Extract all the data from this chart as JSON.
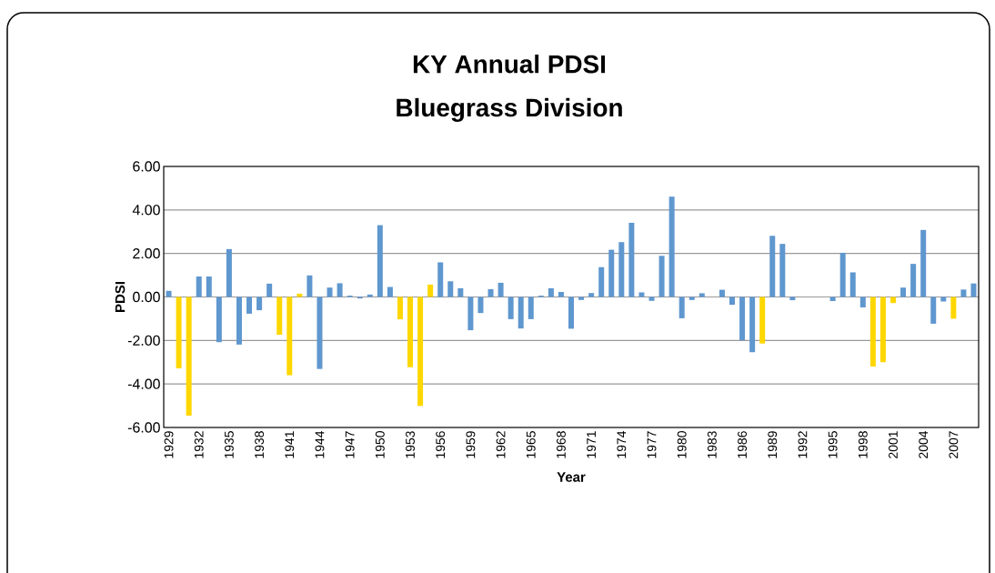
{
  "chart_data": {
    "type": "bar",
    "title": "KY Annual PDSI\nBluegrass Division",
    "xlabel": "Year",
    "ylabel": "PDSI",
    "categories": [
      "1929",
      null,
      null,
      "1932",
      null,
      null,
      "1935",
      null,
      null,
      "1938",
      null,
      null,
      "1941",
      null,
      null,
      "1944",
      null,
      null,
      "1947",
      null,
      null,
      "1950",
      null,
      null,
      "1953",
      null,
      null,
      "1956",
      null,
      null,
      "1959",
      null,
      null,
      "1962",
      null,
      null,
      "1965",
      null,
      null,
      "1968",
      null,
      null,
      "1971",
      null,
      null,
      "1974",
      null,
      null,
      "1977",
      null,
      null,
      "1980",
      null,
      null,
      "1983",
      null,
      null,
      "1986",
      null,
      null,
      "1989",
      null,
      null,
      "1992",
      null,
      null,
      "1995",
      null,
      null,
      "1998",
      null,
      null,
      "2001",
      null,
      null,
      "2004",
      null,
      null,
      "2007",
      null,
      null
    ],
    "values": [
      0.28,
      -3.28,
      -5.46,
      0.94,
      0.94,
      -2.08,
      2.2,
      -2.19,
      -0.77,
      -0.61,
      0.61,
      -1.74,
      -3.6,
      0.15,
      0.99,
      -3.31,
      0.43,
      0.63,
      0.06,
      -0.07,
      0.11,
      3.3,
      0.46,
      -1.03,
      -3.23,
      -5.01,
      0.57,
      1.59,
      0.72,
      0.4,
      -1.53,
      -0.74,
      0.36,
      0.65,
      -1.02,
      -1.45,
      -1.02,
      0.06,
      0.4,
      0.23,
      -1.46,
      -0.14,
      0.18,
      1.37,
      2.17,
      2.52,
      3.41,
      0.21,
      -0.18,
      1.89,
      4.61,
      -0.98,
      -0.14,
      0.17,
      null,
      0.33,
      -0.36,
      -1.99,
      -2.54,
      -2.14,
      2.81,
      2.44,
      -0.15,
      null,
      null,
      null,
      -0.19,
      2.03,
      1.13,
      -0.48,
      -3.2,
      -3.0,
      -0.28,
      0.43,
      1.52,
      3.08,
      -1.23,
      -0.21,
      -1.0,
      0.34,
      0.62
    ],
    "colors": [
      "#5f97cf",
      "#ffd700",
      "#ffd700",
      "#5f97cf",
      "#5f97cf",
      "#5f97cf",
      "#5f97cf",
      "#5f97cf",
      "#5f97cf",
      "#5f97cf",
      "#5f97cf",
      "#ffd700",
      "#ffd700",
      "#ffd700",
      "#5f97cf",
      "#5f97cf",
      "#5f97cf",
      "#5f97cf",
      "#5f97cf",
      "#5f97cf",
      "#5f97cf",
      "#5f97cf",
      "#5f97cf",
      "#ffd700",
      "#ffd700",
      "#ffd700",
      "#ffd700",
      "#5f97cf",
      "#5f97cf",
      "#5f97cf",
      "#5f97cf",
      "#5f97cf",
      "#5f97cf",
      "#5f97cf",
      "#5f97cf",
      "#5f97cf",
      "#5f97cf",
      "#5f97cf",
      "#5f97cf",
      "#5f97cf",
      "#5f97cf",
      "#5f97cf",
      "#5f97cf",
      "#5f97cf",
      "#5f97cf",
      "#5f97cf",
      "#5f97cf",
      "#5f97cf",
      "#5f97cf",
      "#5f97cf",
      "#5f97cf",
      "#5f97cf",
      "#5f97cf",
      "#5f97cf",
      "#5f97cf",
      "#5f97cf",
      "#5f97cf",
      "#5f97cf",
      "#5f97cf",
      "#ffd700",
      "#5f97cf",
      "#5f97cf",
      "#5f97cf",
      "#5f97cf",
      "#5f97cf",
      "#5f97cf",
      "#5f97cf",
      "#5f97cf",
      "#5f97cf",
      "#5f97cf",
      "#ffd700",
      "#ffd700",
      "#ffd700",
      "#5f97cf",
      "#5f97cf",
      "#5f97cf",
      "#5f97cf",
      "#5f97cf",
      "#ffd700",
      "#5f97cf",
      "#5f97cf"
    ],
    "ylim": [
      -6,
      6
    ],
    "yticks": [
      {
        "value": -6,
        "label": "-6.00"
      },
      {
        "value": -4,
        "label": "-4.00"
      },
      {
        "value": -2,
        "label": "-2.00"
      },
      {
        "value": 0,
        "label": "0.00"
      },
      {
        "value": 2,
        "label": "2.00"
      },
      {
        "value": 4,
        "label": "4.00"
      },
      {
        "value": 6,
        "label": "6.00"
      }
    ],
    "grid": "y"
  }
}
